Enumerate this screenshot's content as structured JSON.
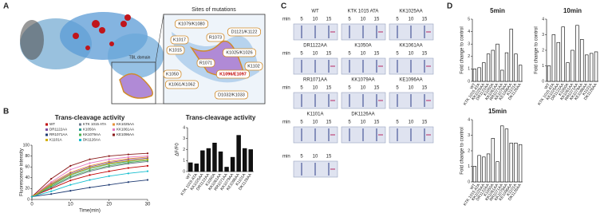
{
  "panel_labels": [
    "A",
    "B",
    "C",
    "D"
  ],
  "panel_a": {
    "title": "Sites of mutations",
    "domain_label": "TBL domain",
    "sites": [
      "K1079/K1080",
      "K1017",
      "R1073",
      "D1121/K1122",
      "K1015",
      "K1025/K1026",
      "R1071",
      "K1102",
      "K1050",
      "K1096/E1097",
      "K1061/K1062",
      "D1032/K1033"
    ]
  },
  "panel_c": {
    "time_label": "min",
    "times": [
      "5",
      "10",
      "15"
    ],
    "gels": [
      "WT",
      "KTK 1015 ATA",
      "KK1025AA",
      "DR1122AA",
      "K1050A",
      "KK1061AA",
      "RR1071AA",
      "KK1079AA",
      "KE1096AA",
      "K1101A",
      "DK1126AA",
      null,
      null
    ]
  },
  "chart_data": [
    {
      "type": "line",
      "title": "Trans-cleavage activity",
      "xlabel": "Time(min)",
      "ylabel": "Fluorescence intensity",
      "x": [
        0,
        5,
        10,
        15,
        20,
        25,
        30
      ],
      "xlim": [
        0,
        30
      ],
      "xticks": [
        0,
        10,
        20,
        30
      ],
      "ylim": [
        0,
        100
      ],
      "yticks": [
        0,
        20,
        40,
        60,
        80,
        100
      ],
      "series": [
        {
          "name": "WT",
          "color": "#c00000",
          "values": [
            5,
            20,
            35,
            45,
            52,
            58,
            62
          ]
        },
        {
          "name": "KTK 1015 ATA",
          "color": "#6d7b8d",
          "values": [
            5,
            22,
            40,
            52,
            60,
            66,
            70
          ]
        },
        {
          "name": "KK1025AA",
          "color": "#e69138",
          "values": [
            5,
            30,
            50,
            62,
            70,
            75,
            78
          ]
        },
        {
          "name": "DR1122AA",
          "color": "#7b4fa0",
          "values": [
            5,
            28,
            48,
            60,
            68,
            73,
            76
          ]
        },
        {
          "name": "K1050A",
          "color": "#2a9d8f",
          "values": [
            5,
            26,
            45,
            57,
            65,
            70,
            74
          ]
        },
        {
          "name": "KK1061AA",
          "color": "#e377c2",
          "values": [
            5,
            32,
            55,
            67,
            74,
            78,
            80
          ]
        },
        {
          "name": "RR1071AA",
          "color": "#1f3b73",
          "values": [
            5,
            10,
            16,
            22,
            27,
            32,
            36
          ]
        },
        {
          "name": "KK1079AA",
          "color": "#4caf50",
          "values": [
            5,
            24,
            42,
            54,
            62,
            68,
            72
          ]
        },
        {
          "name": "KE1096AA",
          "color": "#8b1a1a",
          "values": [
            5,
            38,
            62,
            74,
            80,
            83,
            85
          ]
        },
        {
          "name": "K1101A",
          "color": "#d4b106",
          "values": [
            5,
            27,
            46,
            58,
            66,
            71,
            74
          ]
        },
        {
          "name": "DK1126AA",
          "color": "#17becf",
          "values": [
            5,
            15,
            27,
            36,
            43,
            48,
            52
          ]
        }
      ]
    },
    {
      "type": "bar",
      "title": "Trans-cleavage activity",
      "ylabel": "ΔF/F0",
      "fill": "#111111",
      "edgecolor": "#000000",
      "categories": [
        "WT",
        "KTK 1015 ATA",
        "KK1025AA",
        "DR1122AA",
        "K1050A",
        "KK1061AA",
        "RR1071AA",
        "KK1079AA",
        "KE1096AA",
        "K1101A",
        "DK1126AA"
      ],
      "values": [
        0.8,
        0.7,
        1.9,
        2.1,
        2.6,
        1.8,
        0.4,
        1.3,
        3.3,
        2.1,
        2.0
      ],
      "ylim": [
        0,
        4
      ],
      "yticks": [
        0,
        1,
        2,
        3,
        4
      ]
    },
    {
      "type": "bar",
      "title": "5min",
      "ylabel": "Fold change to control",
      "fill": "#ffffff",
      "edgecolor": "#000000",
      "categories": [
        "WT",
        "KTK 1015 ATA",
        "KK1025AA",
        "DR1122AA",
        "K1050A",
        "KK1061AA",
        "RR1071AA",
        "KK1079AA",
        "KE1096AA",
        "K1101A",
        "DK1126AA"
      ],
      "values": [
        1.0,
        1.1,
        1.5,
        2.2,
        2.5,
        3.0,
        0.9,
        2.3,
        4.2,
        2.2,
        1.3
      ],
      "ylim": [
        0,
        5
      ],
      "yticks": [
        0,
        1,
        2,
        3,
        4,
        5
      ]
    },
    {
      "type": "bar",
      "title": "10min",
      "ylabel": "Fold change to control",
      "fill": "#ffffff",
      "edgecolor": "#000000",
      "categories": [
        "WT",
        "KTK 1015 ATA",
        "KK1025AA",
        "DR1122AA",
        "K1050A",
        "KK1061AA",
        "RR1071AA",
        "KK1079AA",
        "KE1096AA",
        "K1101A",
        "DK1126AA"
      ],
      "values": [
        1.0,
        3.0,
        2.5,
        3.5,
        1.2,
        2.0,
        3.6,
        2.7,
        1.7,
        1.8,
        1.9
      ],
      "ylim": [
        0,
        4
      ],
      "yticks": [
        0,
        1,
        2,
        3,
        4
      ]
    },
    {
      "type": "bar",
      "title": "15min",
      "ylabel": "Fold change to control",
      "fill": "#ffffff",
      "edgecolor": "#000000",
      "categories": [
        "WT",
        "KTK 1015 ATA",
        "KK1025AA",
        "DR1122AA",
        "K1050A",
        "KK1061AA",
        "RR1071AA",
        "KK1079AA",
        "KE1096AA",
        "K1101A",
        "DK1126AA"
      ],
      "values": [
        1.0,
        1.7,
        1.6,
        1.8,
        2.8,
        1.3,
        3.6,
        3.4,
        2.5,
        2.5,
        2.4
      ],
      "ylim": [
        0,
        4
      ],
      "yticks": [
        0,
        1,
        2,
        3,
        4
      ]
    }
  ]
}
